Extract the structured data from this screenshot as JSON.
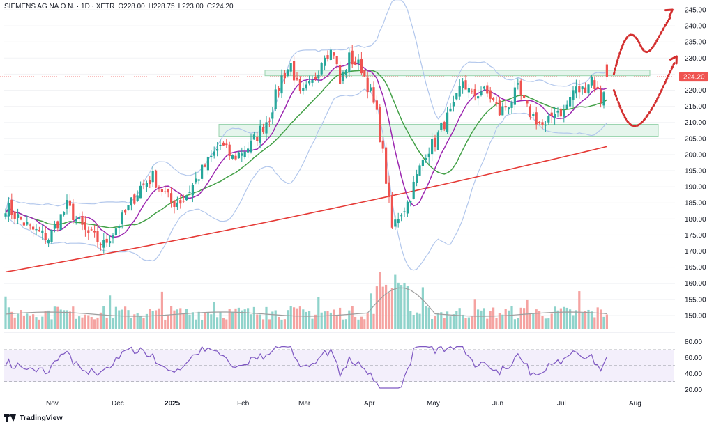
{
  "header": {
    "symbol": "SIEMENS AG NA O.N. · 1D · XETR",
    "open": "O228.00",
    "high": "H228.75",
    "low": "L223.00",
    "close": "C224.20"
  },
  "branding": {
    "name": "TradingView",
    "icon": "tradingview-logo-icon"
  },
  "colors": {
    "up": "#26a69a",
    "down": "#ef5350",
    "volume_up": "#8fd3cb",
    "volume_down": "#f5a3a1",
    "ma_fast": "#9c27b0",
    "ma_mid": "#43a047",
    "ma_slow": "#e53935",
    "bollinger": "#b2c7ec",
    "zone_fill": "#e3f4ea",
    "zone_stroke": "#8fcfa6",
    "rsi_line": "#7e57c2",
    "rsi_band": "#f3effb",
    "arrow": "#d32f2f",
    "price_tag": "#ef5350"
  },
  "chart_data": {
    "type": "candlestick",
    "instrument": "SIEMENS AG NA O.N.",
    "interval": "1D",
    "exchange": "XETR",
    "last_price": "224.20",
    "x_axis": {
      "labels": [
        "Nov",
        "Dec",
        "2025",
        "Feb",
        "Mar",
        "Apr",
        "May",
        "Jun",
        "Jul",
        "Aug"
      ]
    },
    "price_axis": {
      "ticks": [
        245,
        240,
        235,
        230,
        225,
        220,
        215,
        210,
        205,
        200,
        195,
        190,
        185,
        180,
        175,
        170,
        165,
        160,
        155,
        150
      ],
      "labels": [
        "245.00",
        "240.00",
        "235.00",
        "230.00",
        "225.00",
        "220.00",
        "215.00",
        "210.00",
        "205.00",
        "200.00",
        "195.00",
        "190.00",
        "185.00",
        "180.00",
        "175.00",
        "170.00",
        "165.00",
        "160.00",
        "155.00",
        "150.00"
      ]
    },
    "rsi_axis": {
      "ticks": [
        80,
        60,
        40,
        20
      ],
      "labels": [
        "80.00",
        "60.00",
        "40.00",
        "20.00"
      ],
      "band": [
        30,
        70
      ]
    },
    "support_resistance_zones": [
      {
        "from": 224.5,
        "to": 226.2
      },
      {
        "from": 205.7,
        "to": 209.4
      }
    ],
    "ohlc_anchors": [
      {
        "i": 0,
        "close": 184
      },
      {
        "i": 8,
        "close": 177
      },
      {
        "i": 14,
        "close": 174
      },
      {
        "i": 20,
        "close": 184
      },
      {
        "i": 26,
        "close": 176
      },
      {
        "i": 32,
        "close": 172
      },
      {
        "i": 38,
        "close": 180
      },
      {
        "i": 44,
        "close": 190
      },
      {
        "i": 48,
        "close": 193
      },
      {
        "i": 54,
        "close": 185
      },
      {
        "i": 58,
        "close": 186
      },
      {
        "i": 64,
        "close": 195
      },
      {
        "i": 70,
        "close": 203
      },
      {
        "i": 74,
        "close": 199
      },
      {
        "i": 80,
        "close": 203
      },
      {
        "i": 86,
        "close": 212
      },
      {
        "i": 90,
        "close": 224
      },
      {
        "i": 93,
        "close": 228
      },
      {
        "i": 96,
        "close": 218
      },
      {
        "i": 100,
        "close": 222
      },
      {
        "i": 104,
        "close": 232
      },
      {
        "i": 107,
        "close": 232
      },
      {
        "i": 109,
        "close": 222
      },
      {
        "i": 112,
        "close": 230
      },
      {
        "i": 116,
        "close": 227
      },
      {
        "i": 119,
        "close": 219
      },
      {
        "i": 121,
        "close": 212
      },
      {
        "i": 123,
        "close": 200
      },
      {
        "i": 126,
        "close": 177
      },
      {
        "i": 128,
        "close": 181
      },
      {
        "i": 131,
        "close": 185
      },
      {
        "i": 134,
        "close": 193
      },
      {
        "i": 137,
        "close": 201
      },
      {
        "i": 140,
        "close": 204
      },
      {
        "i": 143,
        "close": 210
      },
      {
        "i": 146,
        "close": 214
      },
      {
        "i": 149,
        "close": 223
      },
      {
        "i": 152,
        "close": 218
      },
      {
        "i": 155,
        "close": 220
      },
      {
        "i": 158,
        "close": 218
      },
      {
        "i": 161,
        "close": 213
      },
      {
        "i": 164,
        "close": 216
      },
      {
        "i": 167,
        "close": 220
      },
      {
        "i": 170,
        "close": 214
      },
      {
        "i": 173,
        "close": 211
      },
      {
        "i": 176,
        "close": 208
      },
      {
        "i": 179,
        "close": 214
      },
      {
        "i": 182,
        "close": 213
      },
      {
        "i": 185,
        "close": 220
      },
      {
        "i": 188,
        "close": 220
      },
      {
        "i": 191,
        "close": 224
      },
      {
        "i": 194,
        "close": 217
      },
      {
        "i": 196,
        "close": 224.2
      }
    ],
    "candle_count": 197,
    "slow_ma": {
      "start": 163.5,
      "end": 202.5
    },
    "projection_arrows": [
      {
        "path": "up-down-up",
        "target": 245.0
      },
      {
        "path": "down-up",
        "target": 230.5
      }
    ]
  }
}
